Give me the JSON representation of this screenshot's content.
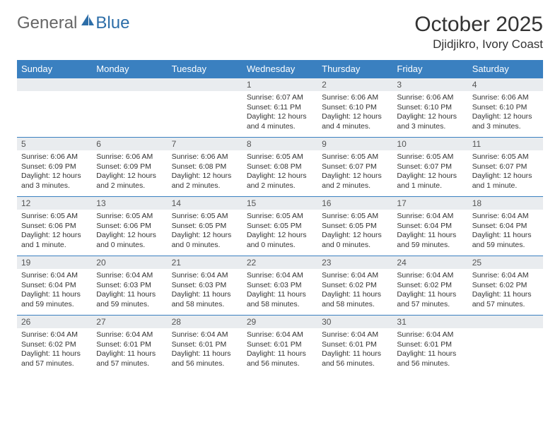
{
  "logo": {
    "general": "General",
    "blue": "Blue"
  },
  "title": "October 2025",
  "location": "Djidjikro, Ivory Coast",
  "colors": {
    "headerBg": "#3a80c0",
    "headerText": "#ffffff",
    "dayNumBg": "#e9ecef",
    "rowBorder": "#3a80c0",
    "logoBlue": "#2d6ea8",
    "logoGray": "#666666",
    "bodyText": "#333333"
  },
  "weekdays": [
    "Sunday",
    "Monday",
    "Tuesday",
    "Wednesday",
    "Thursday",
    "Friday",
    "Saturday"
  ],
  "weeks": [
    [
      null,
      null,
      null,
      {
        "n": "1",
        "sr": "Sunrise: 6:07 AM",
        "ss": "Sunset: 6:11 PM",
        "dl": "Daylight: 12 hours and 4 minutes."
      },
      {
        "n": "2",
        "sr": "Sunrise: 6:06 AM",
        "ss": "Sunset: 6:10 PM",
        "dl": "Daylight: 12 hours and 4 minutes."
      },
      {
        "n": "3",
        "sr": "Sunrise: 6:06 AM",
        "ss": "Sunset: 6:10 PM",
        "dl": "Daylight: 12 hours and 3 minutes."
      },
      {
        "n": "4",
        "sr": "Sunrise: 6:06 AM",
        "ss": "Sunset: 6:10 PM",
        "dl": "Daylight: 12 hours and 3 minutes."
      }
    ],
    [
      {
        "n": "5",
        "sr": "Sunrise: 6:06 AM",
        "ss": "Sunset: 6:09 PM",
        "dl": "Daylight: 12 hours and 3 minutes."
      },
      {
        "n": "6",
        "sr": "Sunrise: 6:06 AM",
        "ss": "Sunset: 6:09 PM",
        "dl": "Daylight: 12 hours and 2 minutes."
      },
      {
        "n": "7",
        "sr": "Sunrise: 6:06 AM",
        "ss": "Sunset: 6:08 PM",
        "dl": "Daylight: 12 hours and 2 minutes."
      },
      {
        "n": "8",
        "sr": "Sunrise: 6:05 AM",
        "ss": "Sunset: 6:08 PM",
        "dl": "Daylight: 12 hours and 2 minutes."
      },
      {
        "n": "9",
        "sr": "Sunrise: 6:05 AM",
        "ss": "Sunset: 6:07 PM",
        "dl": "Daylight: 12 hours and 2 minutes."
      },
      {
        "n": "10",
        "sr": "Sunrise: 6:05 AM",
        "ss": "Sunset: 6:07 PM",
        "dl": "Daylight: 12 hours and 1 minute."
      },
      {
        "n": "11",
        "sr": "Sunrise: 6:05 AM",
        "ss": "Sunset: 6:07 PM",
        "dl": "Daylight: 12 hours and 1 minute."
      }
    ],
    [
      {
        "n": "12",
        "sr": "Sunrise: 6:05 AM",
        "ss": "Sunset: 6:06 PM",
        "dl": "Daylight: 12 hours and 1 minute."
      },
      {
        "n": "13",
        "sr": "Sunrise: 6:05 AM",
        "ss": "Sunset: 6:06 PM",
        "dl": "Daylight: 12 hours and 0 minutes."
      },
      {
        "n": "14",
        "sr": "Sunrise: 6:05 AM",
        "ss": "Sunset: 6:05 PM",
        "dl": "Daylight: 12 hours and 0 minutes."
      },
      {
        "n": "15",
        "sr": "Sunrise: 6:05 AM",
        "ss": "Sunset: 6:05 PM",
        "dl": "Daylight: 12 hours and 0 minutes."
      },
      {
        "n": "16",
        "sr": "Sunrise: 6:05 AM",
        "ss": "Sunset: 6:05 PM",
        "dl": "Daylight: 12 hours and 0 minutes."
      },
      {
        "n": "17",
        "sr": "Sunrise: 6:04 AM",
        "ss": "Sunset: 6:04 PM",
        "dl": "Daylight: 11 hours and 59 minutes."
      },
      {
        "n": "18",
        "sr": "Sunrise: 6:04 AM",
        "ss": "Sunset: 6:04 PM",
        "dl": "Daylight: 11 hours and 59 minutes."
      }
    ],
    [
      {
        "n": "19",
        "sr": "Sunrise: 6:04 AM",
        "ss": "Sunset: 6:04 PM",
        "dl": "Daylight: 11 hours and 59 minutes."
      },
      {
        "n": "20",
        "sr": "Sunrise: 6:04 AM",
        "ss": "Sunset: 6:03 PM",
        "dl": "Daylight: 11 hours and 59 minutes."
      },
      {
        "n": "21",
        "sr": "Sunrise: 6:04 AM",
        "ss": "Sunset: 6:03 PM",
        "dl": "Daylight: 11 hours and 58 minutes."
      },
      {
        "n": "22",
        "sr": "Sunrise: 6:04 AM",
        "ss": "Sunset: 6:03 PM",
        "dl": "Daylight: 11 hours and 58 minutes."
      },
      {
        "n": "23",
        "sr": "Sunrise: 6:04 AM",
        "ss": "Sunset: 6:02 PM",
        "dl": "Daylight: 11 hours and 58 minutes."
      },
      {
        "n": "24",
        "sr": "Sunrise: 6:04 AM",
        "ss": "Sunset: 6:02 PM",
        "dl": "Daylight: 11 hours and 57 minutes."
      },
      {
        "n": "25",
        "sr": "Sunrise: 6:04 AM",
        "ss": "Sunset: 6:02 PM",
        "dl": "Daylight: 11 hours and 57 minutes."
      }
    ],
    [
      {
        "n": "26",
        "sr": "Sunrise: 6:04 AM",
        "ss": "Sunset: 6:02 PM",
        "dl": "Daylight: 11 hours and 57 minutes."
      },
      {
        "n": "27",
        "sr": "Sunrise: 6:04 AM",
        "ss": "Sunset: 6:01 PM",
        "dl": "Daylight: 11 hours and 57 minutes."
      },
      {
        "n": "28",
        "sr": "Sunrise: 6:04 AM",
        "ss": "Sunset: 6:01 PM",
        "dl": "Daylight: 11 hours and 56 minutes."
      },
      {
        "n": "29",
        "sr": "Sunrise: 6:04 AM",
        "ss": "Sunset: 6:01 PM",
        "dl": "Daylight: 11 hours and 56 minutes."
      },
      {
        "n": "30",
        "sr": "Sunrise: 6:04 AM",
        "ss": "Sunset: 6:01 PM",
        "dl": "Daylight: 11 hours and 56 minutes."
      },
      {
        "n": "31",
        "sr": "Sunrise: 6:04 AM",
        "ss": "Sunset: 6:01 PM",
        "dl": "Daylight: 11 hours and 56 minutes."
      },
      null
    ]
  ]
}
